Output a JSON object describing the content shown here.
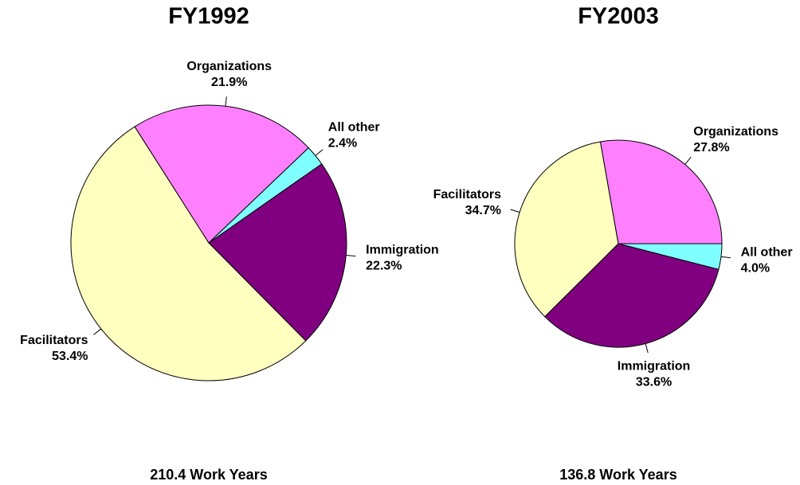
{
  "chart_data": [
    {
      "type": "pie",
      "title": "FY1992",
      "caption": "210.4 Work Years",
      "categories": [
        "Immigration",
        "Facilitators",
        "Organizations",
        "All other"
      ],
      "values": [
        22.3,
        53.4,
        21.9,
        2.4
      ],
      "value_labels": [
        "22.3%",
        "53.4%",
        "21.9%",
        "2.4%"
      ],
      "colors": [
        "#800080",
        "#ffffc0",
        "#ff80ff",
        "#80ffff"
      ]
    },
    {
      "type": "pie",
      "title": "FY2003",
      "caption": "136.8 Work Years",
      "categories": [
        "All other",
        "Immigration",
        "Facilitators",
        "Organizations"
      ],
      "values": [
        4.0,
        33.6,
        34.7,
        27.8
      ],
      "value_labels": [
        "4.0%",
        "33.6%",
        "34.7%",
        "27.8%"
      ],
      "colors": [
        "#80ffff",
        "#800080",
        "#ffffc0",
        "#ff80ff"
      ]
    }
  ]
}
